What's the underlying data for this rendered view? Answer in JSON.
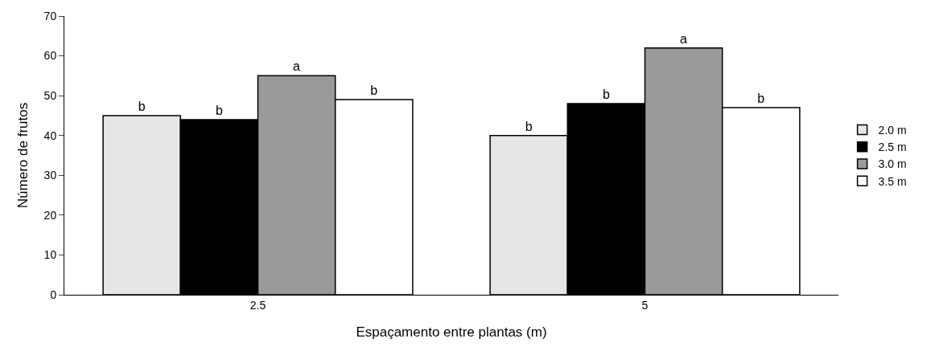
{
  "chart_data": {
    "type": "bar",
    "xlabel": "Espaçamento entre plantas (m)",
    "ylabel": "Número de frutos",
    "categories": [
      "2.5",
      "5"
    ],
    "series": [
      {
        "name": "2.0 m",
        "color": "#e6e6e6",
        "values": [
          45,
          40
        ],
        "value_labels": [
          "b",
          "b"
        ]
      },
      {
        "name": "2.5 m",
        "color": "#000000",
        "values": [
          44,
          48
        ],
        "value_labels": [
          "b",
          "b"
        ]
      },
      {
        "name": "3.0 m",
        "color": "#9a9a9a",
        "values": [
          55,
          62
        ],
        "value_labels": [
          "a",
          "a"
        ]
      },
      {
        "name": "3.5 m",
        "color": "#ffffff",
        "values": [
          49,
          47
        ],
        "value_labels": [
          "b",
          "b"
        ]
      }
    ],
    "ylim": [
      0,
      70
    ],
    "yticks": [
      0,
      10,
      20,
      30,
      40,
      50,
      60,
      70
    ],
    "legend": "right"
  }
}
